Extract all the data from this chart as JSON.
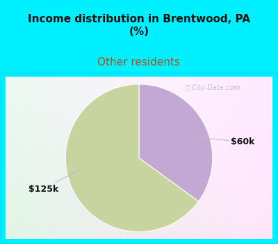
{
  "title": "Income distribution in Brentwood, PA\n(%)",
  "subtitle": "Other residents",
  "slices": [
    {
      "label": "$60k",
      "value": 35,
      "color": "#c4a8d4"
    },
    {
      "label": "$125k",
      "value": 65,
      "color": "#c8d4a0"
    }
  ],
  "title_fontsize": 11,
  "subtitle_fontsize": 11,
  "title_color": "#111111",
  "subtitle_color": "#b05020",
  "bg_color": "#00f0ff",
  "watermark": "City-Data.com",
  "label_color": "#111111",
  "label_fontsize": 9,
  "annotation_line_color": "#c0b8d0",
  "chart_border_color": "#00e5ff"
}
